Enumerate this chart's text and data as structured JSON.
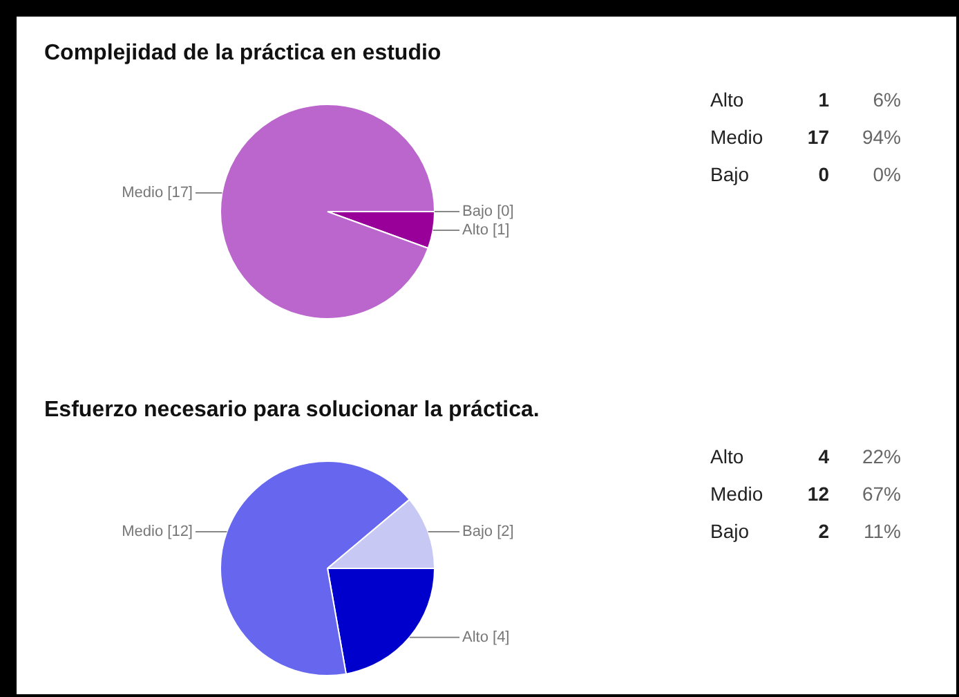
{
  "chart_data": [
    {
      "type": "pie",
      "title": "Complejidad de la práctica en estudio",
      "categories": [
        "Alto",
        "Medio",
        "Bajo"
      ],
      "values": [
        1,
        17,
        0
      ],
      "colors": [
        "#990099",
        "#bb66cc",
        "#e6b3ee"
      ],
      "value_labels": [
        "[1]",
        "[17]",
        "[0]"
      ]
    },
    {
      "type": "other",
      "categories": [
        "Alto",
        "Medio",
        "Bajo"
      ],
      "values": [
        1,
        17,
        0
      ],
      "data_labels": true,
      "annotations": [
        "6%",
        "94%",
        "0%"
      ]
    },
    {
      "type": "pie",
      "title": "Esfuerzo necesario para solucionar la práctica.",
      "categories": [
        "Alto",
        "Medio",
        "Bajo"
      ],
      "values": [
        4,
        12,
        2
      ],
      "colors": [
        "#0000cc",
        "#6666ee",
        "#c8c8f4"
      ],
      "value_labels": [
        "[4]",
        "[12]",
        "[2]"
      ]
    },
    {
      "type": "other",
      "categories": [
        "Alto",
        "Medio",
        "Bajo"
      ],
      "values": [
        4,
        12,
        2
      ],
      "data_labels": true,
      "annotations": [
        "22%",
        "67%",
        "11%"
      ]
    }
  ]
}
